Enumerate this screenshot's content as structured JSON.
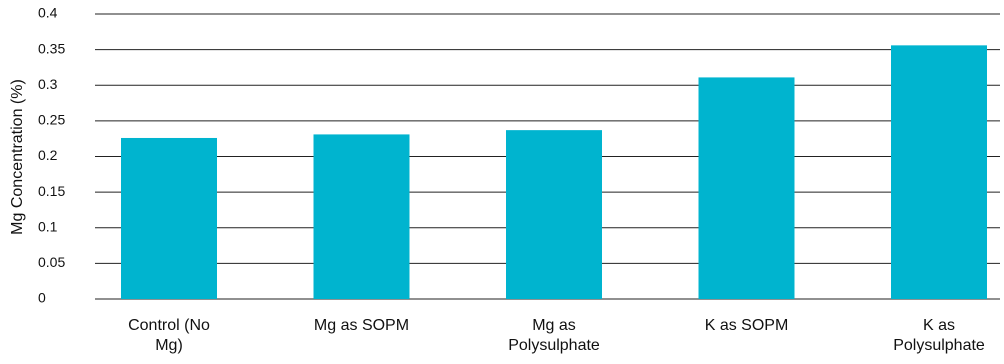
{
  "chart_data": {
    "type": "bar",
    "y_label": "Mg Concentration (%)",
    "categories": [
      "Control (No Mg)",
      "Mg as SOPM",
      "Mg as Polysulphate",
      "K as SOPM",
      "K as Polysulphate"
    ],
    "values": [
      0.226,
      0.231,
      0.237,
      0.311,
      0.356
    ],
    "color": "#00b4cf",
    "ylim": [
      0,
      0.4
    ],
    "yticks": [
      0,
      0.05,
      0.1,
      0.15,
      0.2,
      0.25,
      0.3,
      0.35,
      0.4
    ],
    "grid": true
  }
}
